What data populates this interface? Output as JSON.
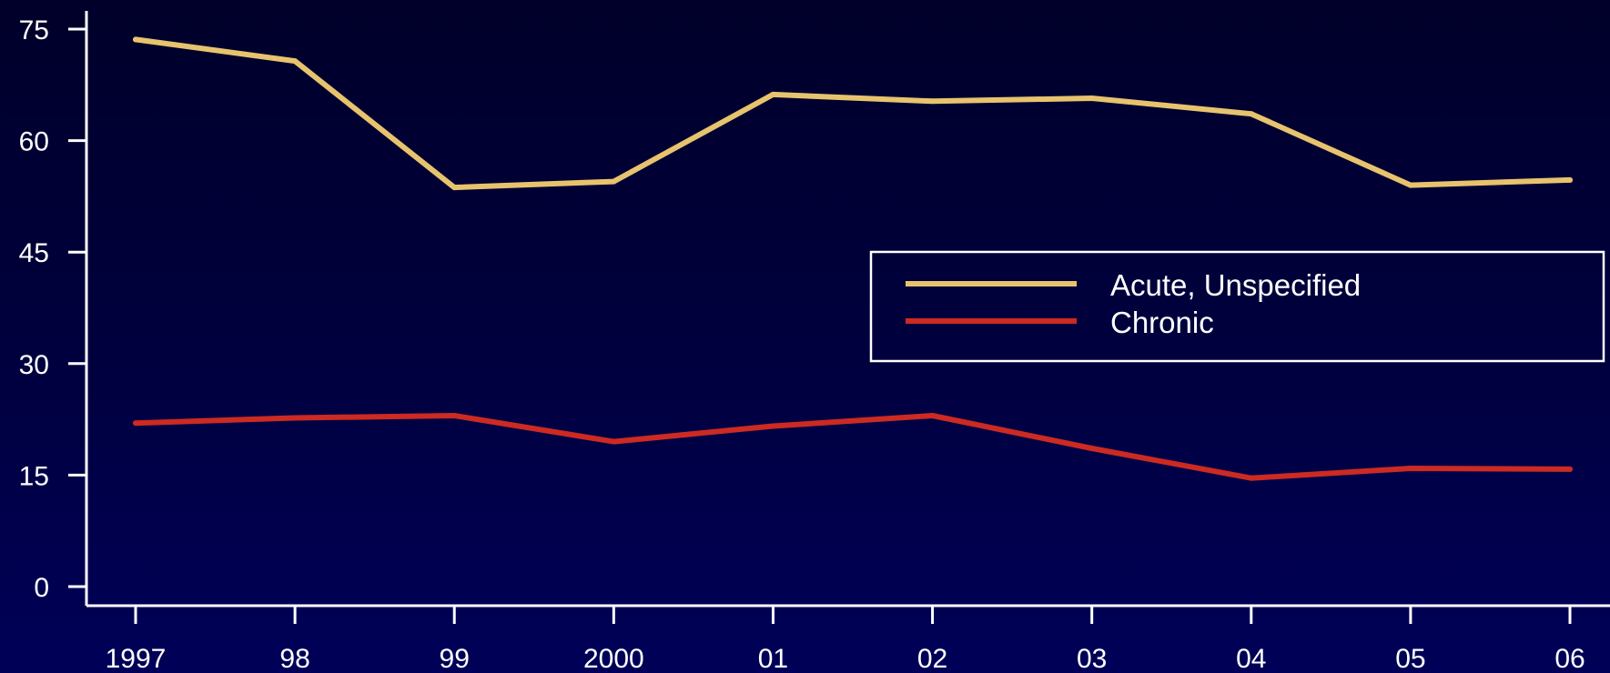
{
  "chart_data": {
    "type": "line",
    "x": [
      "1997",
      "98",
      "99",
      "2000",
      "01",
      "02",
      "03",
      "04",
      "05",
      "06"
    ],
    "ylim": [
      0,
      75
    ],
    "yticks": [
      0,
      15,
      30,
      45,
      60,
      75
    ],
    "grid": false,
    "legend": {
      "placement": "center-right",
      "entries": [
        "Acute, Unspecified",
        "Chronic"
      ]
    },
    "series": [
      {
        "name": "Acute, Unspecified",
        "color": "#e8c36e",
        "values": [
          73.6,
          70.7,
          53.7,
          54.5,
          66.2,
          65.3,
          65.7,
          63.6,
          54.0,
          54.7
        ]
      },
      {
        "name": "Chronic",
        "color": "#cc2a22",
        "values": [
          22.0,
          22.7,
          23.0,
          19.5,
          21.6,
          23.0,
          18.6,
          14.6,
          15.9,
          15.8
        ]
      }
    ]
  }
}
